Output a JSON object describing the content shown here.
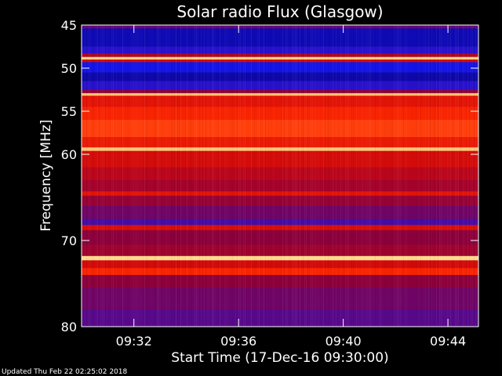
{
  "chart_data": {
    "type": "heatmap",
    "title": "Solar radio Flux (Glasgow)",
    "xlabel": "Start Time (17-Dec-16 09:30:00)",
    "ylabel": "Frequency [MHz]",
    "xlim": [
      "09:30:00",
      "09:45:10"
    ],
    "ylim": [
      45,
      80
    ],
    "y_inverted": true,
    "x_ticks": [
      "09:32",
      "09:36",
      "09:40",
      "09:44"
    ],
    "y_ticks": [
      45,
      50,
      55,
      60,
      70,
      80
    ],
    "colormap": "blue-red-yellow",
    "bands": [
      {
        "from": 45.0,
        "to": 45.4,
        "level": 0.25
      },
      {
        "from": 45.4,
        "to": 47.5,
        "level": 0.04
      },
      {
        "from": 47.5,
        "to": 48.3,
        "level": 0.12
      },
      {
        "from": 48.3,
        "to": 48.7,
        "level": 0.45
      },
      {
        "from": 48.7,
        "to": 49.0,
        "level": 0.97
      },
      {
        "from": 49.0,
        "to": 49.3,
        "level": 0.55
      },
      {
        "from": 49.3,
        "to": 50.5,
        "level": 0.08
      },
      {
        "from": 50.5,
        "to": 51.5,
        "level": 0.03
      },
      {
        "from": 51.5,
        "to": 52.5,
        "level": 0.12
      },
      {
        "from": 52.5,
        "to": 52.9,
        "level": 0.35
      },
      {
        "from": 52.9,
        "to": 53.2,
        "level": 0.95
      },
      {
        "from": 53.2,
        "to": 54.5,
        "level": 0.62
      },
      {
        "from": 54.5,
        "to": 56.0,
        "level": 0.72
      },
      {
        "from": 56.0,
        "to": 58.0,
        "level": 0.78
      },
      {
        "from": 58.0,
        "to": 59.2,
        "level": 0.66
      },
      {
        "from": 59.2,
        "to": 59.6,
        "level": 0.96
      },
      {
        "from": 59.6,
        "to": 61.5,
        "level": 0.56
      },
      {
        "from": 61.5,
        "to": 63.0,
        "level": 0.48
      },
      {
        "from": 63.0,
        "to": 64.3,
        "level": 0.42
      },
      {
        "from": 64.3,
        "to": 64.8,
        "level": 0.62
      },
      {
        "from": 64.8,
        "to": 66.0,
        "level": 0.38
      },
      {
        "from": 66.0,
        "to": 67.5,
        "level": 0.28
      },
      {
        "from": 67.5,
        "to": 68.2,
        "level": 0.18
      },
      {
        "from": 68.2,
        "to": 68.8,
        "level": 0.58
      },
      {
        "from": 68.8,
        "to": 70.5,
        "level": 0.35
      },
      {
        "from": 70.5,
        "to": 71.8,
        "level": 0.4
      },
      {
        "from": 71.8,
        "to": 72.3,
        "level": 0.98
      },
      {
        "from": 72.3,
        "to": 73.2,
        "level": 0.55
      },
      {
        "from": 73.2,
        "to": 74.0,
        "level": 0.72
      },
      {
        "from": 74.0,
        "to": 75.5,
        "level": 0.35
      },
      {
        "from": 75.5,
        "to": 78.0,
        "level": 0.28
      },
      {
        "from": 78.0,
        "to": 80.0,
        "level": 0.22
      }
    ]
  },
  "footer": {
    "updated": "Updated Thu Feb 22 02:25:02 2018"
  }
}
